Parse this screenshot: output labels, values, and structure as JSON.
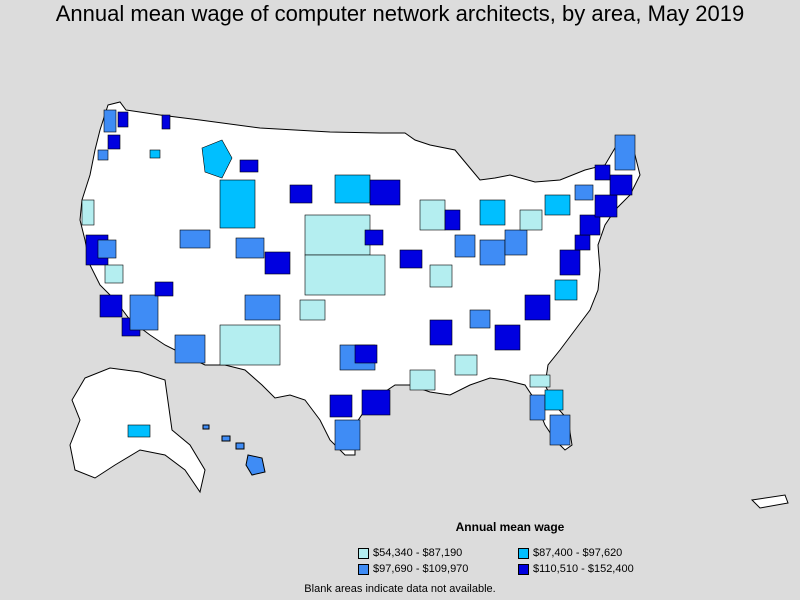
{
  "title": "Annual mean wage of computer network architects, by area, May 2019",
  "legend": {
    "title": "Annual mean wage",
    "items": [
      {
        "label": "$54,340 - $87,190",
        "color": "#b4eef0"
      },
      {
        "label": "$87,400 - $97,620",
        "color": "#00bfff"
      },
      {
        "label": "$97,690 - $109,970",
        "color": "#3f8cf5"
      },
      {
        "label": "$110,510 - $152,400",
        "color": "#0000e0"
      }
    ]
  },
  "footnote": "Blank areas indicate data not available.",
  "colors": {
    "background": "#dcdcdc",
    "land": "#ffffff",
    "border": "#000000"
  }
}
